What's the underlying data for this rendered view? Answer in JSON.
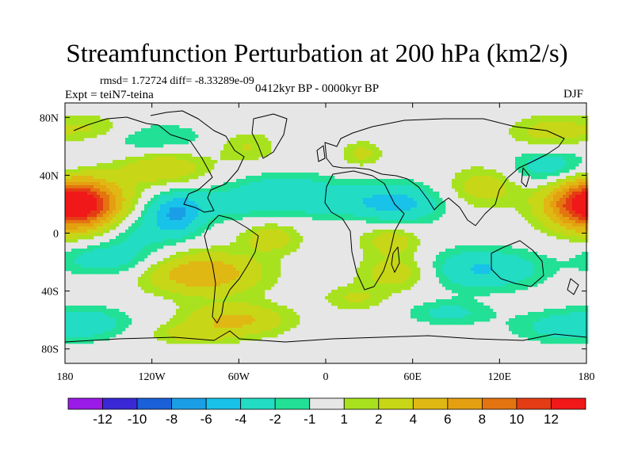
{
  "chart_data": {
    "type": "filled-contour-map",
    "title": "Streamfunction Perturbation at 200 hPa (km2/s)",
    "stats_text": "rmsd= 1.72724 diff= -8.33289e-09",
    "experiment": "Expt = teiN7-teina",
    "period": "0412kyr BP - 0000kyr BP",
    "season": "DJF",
    "rmsd": 1.72724,
    "diff": -8.33289e-09,
    "lon_range": [
      -180,
      180
    ],
    "lat_range": [
      -90,
      90
    ],
    "x_ticks": [
      {
        "lon": -180,
        "label": "180"
      },
      {
        "lon": -120,
        "label": "120W"
      },
      {
        "lon": -60,
        "label": "60W"
      },
      {
        "lon": 0,
        "label": "0"
      },
      {
        "lon": 60,
        "label": "60E"
      },
      {
        "lon": 120,
        "label": "120E"
      },
      {
        "lon": 180,
        "label": "180"
      }
    ],
    "y_ticks": [
      {
        "lat": 80,
        "label": "80N"
      },
      {
        "lat": 40,
        "label": "40N"
      },
      {
        "lat": 0,
        "label": "0"
      },
      {
        "lat": -40,
        "label": "40S"
      },
      {
        "lat": -80,
        "label": "80S"
      }
    ],
    "colorbar": {
      "colors": [
        "#9a1be6",
        "#3a28d6",
        "#1a60d8",
        "#1a9ee6",
        "#18c2e8",
        "#22dcc4",
        "#22e096",
        "#e6e6e6",
        "#a8e21e",
        "#c8d618",
        "#e0b814",
        "#e4a010",
        "#e47410",
        "#e43c14",
        "#f01818"
      ],
      "labels": [
        "-12",
        "-10",
        "-8",
        "-6",
        "-4",
        "-2",
        "-1",
        "1",
        "2",
        "4",
        "6",
        "8",
        "10",
        "12"
      ],
      "levels": [
        -12,
        -10,
        -8,
        -6,
        -4,
        -2,
        -1,
        1,
        2,
        4,
        6,
        8,
        10,
        12
      ]
    },
    "anomalies": [
      {
        "lon": -168,
        "lat": 20,
        "amp": 9,
        "slon": 22,
        "slat": 12
      },
      {
        "lon": 180,
        "lat": 20,
        "amp": 8,
        "slon": 20,
        "slat": 12
      },
      {
        "lon": -85,
        "lat": -28,
        "amp": 6,
        "slon": 28,
        "slat": 10
      },
      {
        "lon": -112,
        "lat": 45,
        "amp": 3.5,
        "slon": 22,
        "slat": 9
      },
      {
        "lon": -130,
        "lat": 2,
        "amp": -2.5,
        "slon": 18,
        "slat": 10
      },
      {
        "lon": -103,
        "lat": 12,
        "amp": -5,
        "slon": 12,
        "slat": 10
      },
      {
        "lon": -150,
        "lat": -18,
        "amp": -3.2,
        "slon": 25,
        "slat": 8
      },
      {
        "lon": -62,
        "lat": -60,
        "amp": 4.5,
        "slon": 25,
        "slat": 8
      },
      {
        "lon": -165,
        "lat": -62,
        "amp": -2.8,
        "slon": 22,
        "slat": 8
      },
      {
        "lon": -38,
        "lat": -3,
        "amp": 3,
        "slon": 15,
        "slat": 8
      },
      {
        "lon": -120,
        "lat": 65,
        "amp": -2.2,
        "slon": 30,
        "slat": 8
      },
      {
        "lon": -72,
        "lat": 20,
        "amp": -2.5,
        "slon": 40,
        "slat": 9
      },
      {
        "lon": -28,
        "lat": 32,
        "amp": -2.2,
        "slon": 25,
        "slat": 8
      },
      {
        "lon": 10,
        "lat": 22,
        "amp": -2.5,
        "slon": 30,
        "slat": 8
      },
      {
        "lon": 52,
        "lat": 20,
        "amp": -4,
        "slon": 20,
        "slat": 10
      },
      {
        "lon": 45,
        "lat": -5,
        "amp": 3,
        "slon": 15,
        "slat": 8
      },
      {
        "lon": 48,
        "lat": -28,
        "amp": 3,
        "slon": 18,
        "slat": 8
      },
      {
        "lon": 20,
        "lat": -45,
        "amp": 2.2,
        "slon": 15,
        "slat": 6
      },
      {
        "lon": 95,
        "lat": -25,
        "amp": -2.8,
        "slon": 20,
        "slat": 10
      },
      {
        "lon": 85,
        "lat": -55,
        "amp": -2.5,
        "slon": 20,
        "slat": 6
      },
      {
        "lon": 125,
        "lat": -25,
        "amp": -2.6,
        "slon": 22,
        "slat": 10
      },
      {
        "lon": 110,
        "lat": 32,
        "amp": 3,
        "slon": 18,
        "slat": 10
      },
      {
        "lon": 155,
        "lat": 45,
        "amp": -3.5,
        "slon": 20,
        "slat": 9
      },
      {
        "lon": 155,
        "lat": 70,
        "amp": 2.8,
        "slon": 20,
        "slat": 8
      },
      {
        "lon": -160,
        "lat": 72,
        "amp": 2.3,
        "slon": 18,
        "slat": 7
      },
      {
        "lon": -55,
        "lat": 60,
        "amp": 2.2,
        "slon": 15,
        "slat": 8
      },
      {
        "lon": 25,
        "lat": 55,
        "amp": 2.5,
        "slon": 10,
        "slat": 6
      },
      {
        "lon": 160,
        "lat": -65,
        "amp": -2.3,
        "slon": 25,
        "slat": 8
      },
      {
        "lon": -95,
        "lat": -70,
        "amp": 2.2,
        "slon": 20,
        "slat": 5
      }
    ]
  }
}
